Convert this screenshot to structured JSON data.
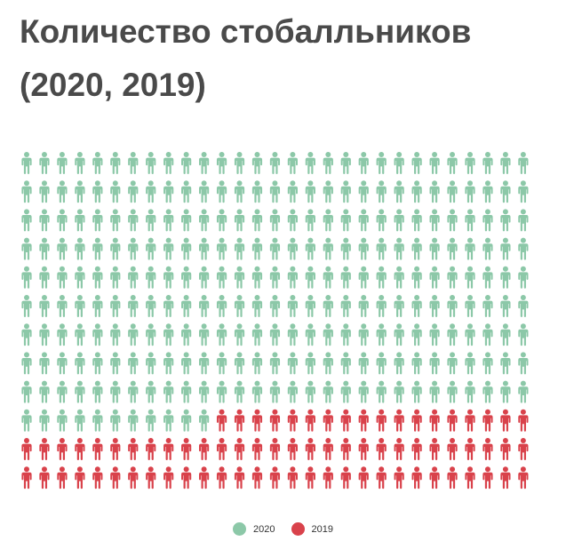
{
  "chart_data": {
    "type": "waffle",
    "title": "Количество стобалльников (2020, 2019)",
    "columns": 29,
    "rows": 12,
    "series": [
      {
        "name": "2020",
        "value": 272,
        "color": "#8cc8a8"
      },
      {
        "name": "2019",
        "value": 76,
        "color": "#d9424b"
      }
    ],
    "legend": "bottom-center"
  }
}
